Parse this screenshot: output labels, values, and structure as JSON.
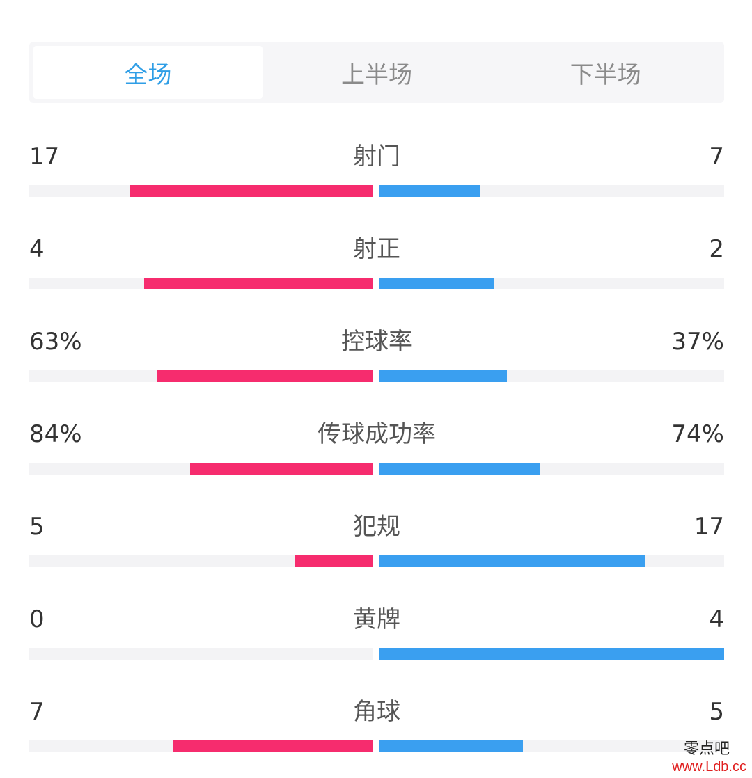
{
  "tabs": [
    {
      "label": "全场",
      "active": true
    },
    {
      "label": "上半场",
      "active": false
    },
    {
      "label": "下半场",
      "active": false
    }
  ],
  "colors": {
    "home": "#f62c6e",
    "away": "#3a9ff0",
    "active_tab": "#2f9ee6"
  },
  "stats": [
    {
      "label": "射门",
      "home": "17",
      "away": "7",
      "home_ratio": 0.708,
      "away_ratio": 0.292
    },
    {
      "label": "射正",
      "home": "4",
      "away": "2",
      "home_ratio": 0.667,
      "away_ratio": 0.333
    },
    {
      "label": "控球率",
      "home": "63%",
      "away": "37%",
      "home_ratio": 0.63,
      "away_ratio": 0.37
    },
    {
      "label": "传球成功率",
      "home": "84%",
      "away": "74%",
      "home_ratio": 0.532,
      "away_ratio": 0.468
    },
    {
      "label": "犯规",
      "home": "5",
      "away": "17",
      "home_ratio": 0.227,
      "away_ratio": 0.773
    },
    {
      "label": "黄牌",
      "home": "0",
      "away": "4",
      "home_ratio": 0,
      "away_ratio": 1
    },
    {
      "label": "角球",
      "home": "7",
      "away": "5",
      "home_ratio": 0.583,
      "away_ratio": 0.417
    }
  ],
  "watermark": {
    "name": "零点吧",
    "url": "www.Ldb.cc"
  }
}
